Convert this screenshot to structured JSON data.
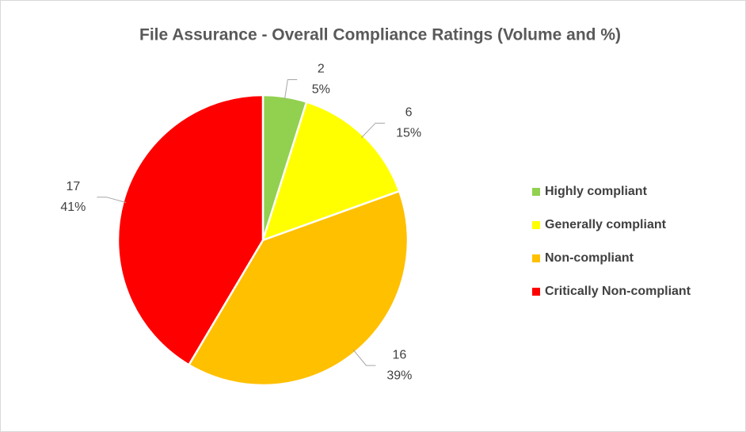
{
  "chart_data": {
    "type": "pie",
    "title": "File Assurance - Overall Compliance Ratings (Volume and %)",
    "categories": [
      "Highly compliant",
      "Generally compliant",
      "Non-compliant",
      "Critically Non-compliant"
    ],
    "values": [
      2,
      6,
      16,
      17
    ],
    "percentages": [
      5,
      15,
      39,
      41
    ],
    "percentage_labels": [
      "5%",
      "15%",
      "39%",
      "41%"
    ],
    "colors": [
      "#92d050",
      "#ffff00",
      "#ffc000",
      "#ff0000"
    ],
    "legend": "right"
  }
}
